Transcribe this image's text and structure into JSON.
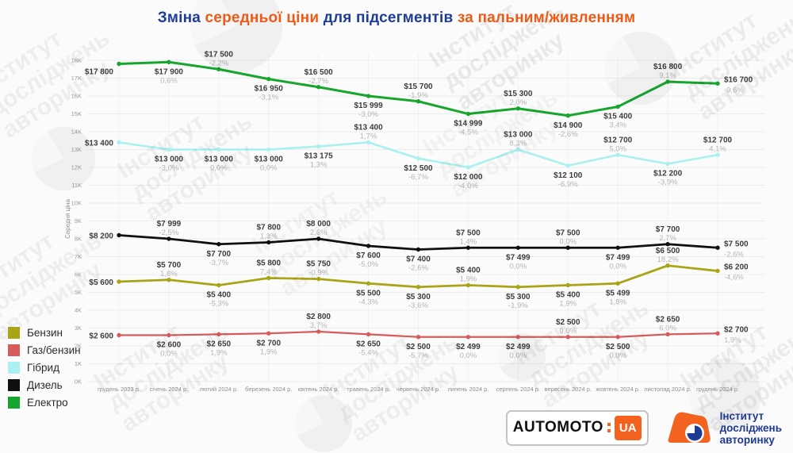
{
  "title": {
    "part1": "Зміна",
    "part2": "середньої ціни",
    "part3": "для підсегментів",
    "part4": "за пальним/живленням"
  },
  "watermark": {
    "line1": "Інститут",
    "line2": "досліджень",
    "line3": "авторинку"
  },
  "chart_data": {
    "type": "line",
    "title": "Зміна середньої ціни для підсегментів за пальним/живленням",
    "xlabel": "",
    "ylabel": "Середня ціна",
    "ylim": [
      0,
      18000
    ],
    "grid": true,
    "legend_position": "bottom-left",
    "ytick_labels": [
      "0K",
      "1K",
      "2K",
      "3K",
      "4K",
      "5K",
      "6K",
      "7K",
      "8K",
      "9K",
      "10K",
      "11K",
      "12K",
      "13K",
      "14K",
      "15K",
      "16K",
      "17K",
      "18K"
    ],
    "categories": [
      "грудень 2023 р.",
      "січень 2024 р.",
      "лютий 2024 р.",
      "березень 2024 р.",
      "квітень 2024 р.",
      "травень 2024 р.",
      "червень 2024 р.",
      "липень 2024 р.",
      "серпень 2024 р.",
      "вересень 2024 р.",
      "жовтень 2024 р.",
      "листопад 2024 р.",
      "грудень 2024 р."
    ],
    "series": [
      {
        "name": "Бензин",
        "color": "#a9a418",
        "values": [
          5600,
          5700,
          5400,
          5800,
          5750,
          5500,
          5300,
          5400,
          5300,
          5400,
          5499,
          6500,
          6200
        ],
        "value_labels": [
          "$5 600",
          "$5 700",
          "$5 400",
          "$5 800",
          "$5 750",
          "$5 500",
          "$5 300",
          "$5 400",
          "$5 300",
          "$5 400",
          "$5 499",
          "$6 500",
          "$6 200"
        ],
        "pct_labels": [
          null,
          "1,8%",
          "-5,3%",
          "7,4%",
          "-0,9%",
          "-4,3%",
          "-3,6%",
          "1,9%",
          "-1,9%",
          "1,9%",
          "1,8%",
          "18,2%",
          "-4,6%"
        ],
        "label_pos": [
          "left",
          "above",
          "below",
          "above",
          "above",
          "below",
          "below",
          "above",
          "below",
          "below",
          "below",
          "above",
          "right"
        ]
      },
      {
        "name": "Газ/бензин",
        "color": "#d65c5c",
        "values": [
          2600,
          2600,
          2650,
          2700,
          2800,
          2650,
          2500,
          2499,
          2499,
          2500,
          2500,
          2650,
          2700
        ],
        "value_labels": [
          "$2 600",
          "$2 600",
          "$2 650",
          "$2 700",
          "$2 800",
          "$2 650",
          "$2 500",
          "$2 499",
          "$2 499",
          "$2 500",
          "$2 500",
          "$2 650",
          "$2 700"
        ],
        "pct_labels": [
          null,
          "0,0%",
          "1,9%",
          "1,9%",
          "3,7%",
          "-5,4%",
          "-5,7%",
          "0,0%",
          "0,0%",
          "0,0%",
          "0,0%",
          "6,0%",
          "1,9%"
        ],
        "label_pos": [
          "left",
          "below",
          "below",
          "below",
          "above",
          "below",
          "below",
          "below",
          "below",
          "above",
          "below",
          "above",
          "right"
        ]
      },
      {
        "name": "Гібрид",
        "color": "#a9f0ef",
        "values": [
          13400,
          13000,
          13000,
          13000,
          13175,
          13400,
          12500,
          12000,
          13000,
          12100,
          12700,
          12200,
          12700
        ],
        "value_labels": [
          "$13 400",
          "$13 000",
          "$13 000",
          "$13 000",
          "$13 175",
          "$13 400",
          "$12 500",
          "$12 000",
          "$13 000",
          "$12 100",
          "$12 700",
          "$12 200",
          "$12 700"
        ],
        "pct_labels": [
          null,
          "-3,0%",
          "0,0%",
          "0,0%",
          "1,3%",
          "1,7%",
          "-6,7%",
          "-4,0%",
          "8,3%",
          "-6,9%",
          "5,0%",
          "-3,9%",
          "4,1%"
        ],
        "label_pos": [
          "left",
          "below",
          "below",
          "below",
          "below",
          "above",
          "below",
          "below",
          "above",
          "below",
          "above",
          "below",
          "above"
        ]
      },
      {
        "name": "Дизель",
        "color": "#101010",
        "values": [
          8200,
          7999,
          7700,
          7800,
          8000,
          7600,
          7400,
          7500,
          7499,
          7500,
          7499,
          7700,
          7500
        ],
        "value_labels": [
          "$8 200",
          "$7 999",
          "$7 700",
          "$7 800",
          "$8 000",
          "$7 600",
          "$7 400",
          "$7 500",
          "$7 499",
          "$7 500",
          "$7 499",
          "$7 700",
          "$7 500"
        ],
        "pct_labels": [
          null,
          "-2,5%",
          "-3,7%",
          "1,3%",
          "2,6%",
          "-5,0%",
          "-2,6%",
          "1,4%",
          "0,0%",
          "0,0%",
          "0,0%",
          "2,7%",
          "-2,6%"
        ],
        "label_pos": [
          "left",
          "above",
          "below",
          "above",
          "above",
          "below",
          "below",
          "above",
          "below",
          "above",
          "below",
          "above",
          "right"
        ]
      },
      {
        "name": "Електро",
        "color": "#17a62d",
        "values": [
          17800,
          17900,
          17500,
          16950,
          16500,
          15999,
          15700,
          14999,
          15300,
          14900,
          15400,
          16800,
          16700
        ],
        "value_labels": [
          "$17 800",
          "$17 900",
          "$17 500",
          "$16 950",
          "$16 500",
          "$15 999",
          "$15 700",
          "$14 999",
          "$15 300",
          "$14 900",
          "$15 400",
          "$16 800",
          "$16 700"
        ],
        "pct_labels": [
          null,
          "0,6%",
          "-2,2%",
          "-3,1%",
          "-2,7%",
          "-3,0%",
          "-1,9%",
          "-4,5%",
          "2,0%",
          "-2,6%",
          "3,4%",
          "9,1%",
          "-0,6%"
        ],
        "label_pos": [
          "leftlow",
          "below",
          "above",
          "below",
          "above",
          "below",
          "above",
          "below",
          "above",
          "below",
          "below",
          "above",
          "right"
        ]
      }
    ]
  },
  "footer": {
    "automoto_name": "AUTOMOTO",
    "automoto_ua": "UA",
    "institute_line1": "Інститут",
    "institute_line2": "досліджень",
    "institute_line3": "авторинку"
  }
}
